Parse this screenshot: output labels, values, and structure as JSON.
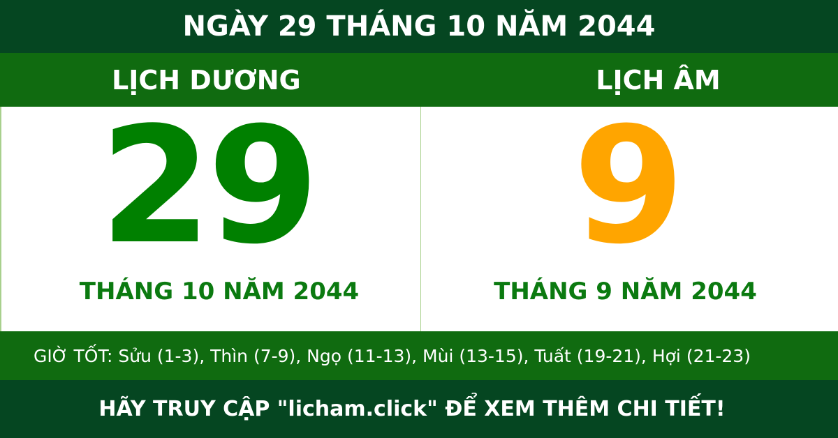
{
  "title": "NGÀY 29 THÁNG 10 NĂM 2044",
  "solar": {
    "header": "LỊCH DƯƠNG",
    "day": "29",
    "month_year": "THÁNG 10 NĂM 2044"
  },
  "lunar": {
    "header": "LỊCH ÂM",
    "day": "9",
    "month_year": "THÁNG 9 NĂM 2044"
  },
  "good_hours": "GIỜ TỐT: Sửu (1-3), Thìn (7-9), Ngọ (11-13), Mùi (13-15), Tuất (19-21), Hợi (21-23)",
  "footer": "HÃY TRUY CẬP \"licham.click\" ĐỂ XEM THÊM CHI TIẾT!",
  "colors": {
    "dark_green": "#054621",
    "green": "#106b10",
    "solar_day": "#008000",
    "lunar_day": "#ffa500"
  }
}
